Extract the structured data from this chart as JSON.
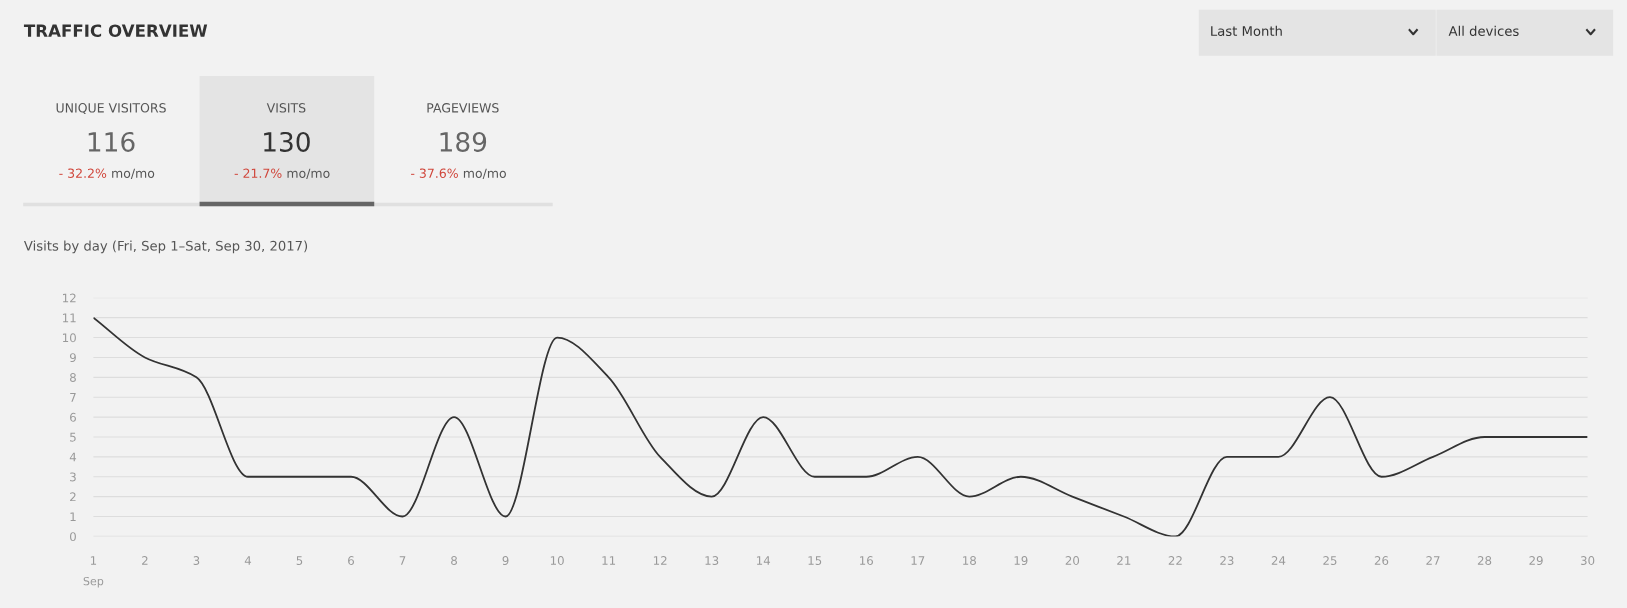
{
  "chart_data": {
    "type": "line",
    "title": "TRAFFIC OVERVIEW",
    "subtitle": "Visits by day (Fri, Sep 1–Sat, Sep 30, 2017)",
    "categories": [
      "1",
      "2",
      "3",
      "4",
      "5",
      "6",
      "7",
      "8",
      "9",
      "10",
      "11",
      "12",
      "13",
      "14",
      "15",
      "16",
      "17",
      "18",
      "19",
      "20",
      "21",
      "22",
      "23",
      "24",
      "25",
      "26",
      "27",
      "28",
      "29",
      "30"
    ],
    "series": [
      {
        "color": "#333333",
        "values": [
          11,
          9,
          8,
          3,
          3,
          3,
          1,
          6,
          1,
          10,
          8,
          4,
          2,
          6,
          3,
          3,
          4,
          2,
          3,
          2,
          1,
          0,
          4,
          4,
          7,
          3,
          4,
          5,
          5,
          5
        ]
      }
    ],
    "ylim": [
      0,
      12
    ],
    "yticks": [
      0,
      1,
      2,
      3,
      4,
      5,
      6,
      7,
      8,
      9,
      10,
      11,
      12
    ],
    "grid": "y",
    "marker": "none",
    "line_style": "solid",
    "annotations": [
      "Last Month",
      "All devices",
      "UNIQUE VISITORS",
      "116",
      "- 32.2%",
      "mo/mo",
      "VISITS",
      "130",
      "- 21.7%",
      "mo/mo",
      "PAGEVIEWS",
      "189",
      "- 37.6%",
      "mo/mo",
      "Sep"
    ]
  }
}
